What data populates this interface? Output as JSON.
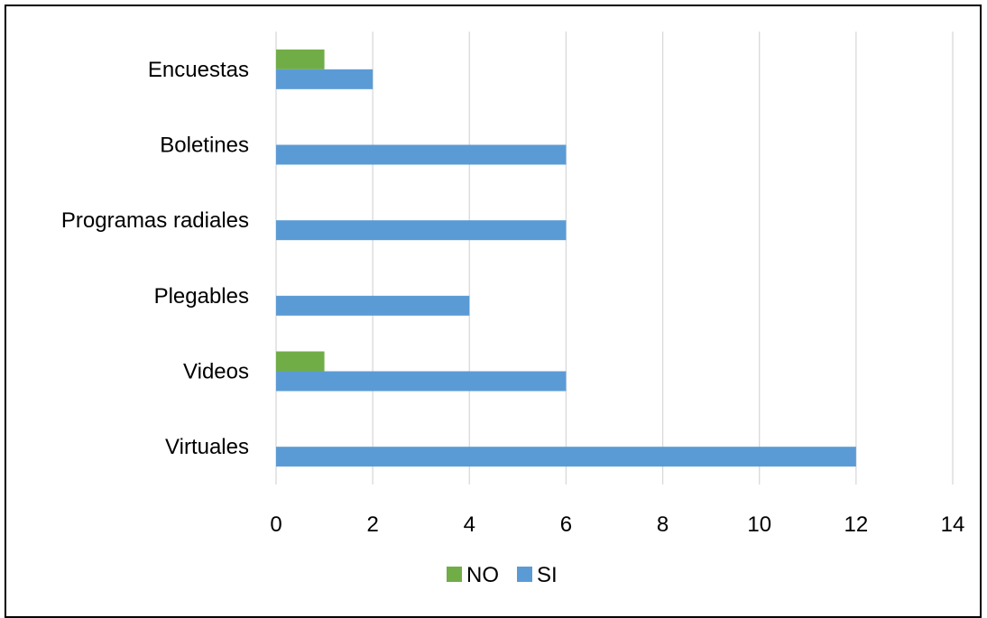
{
  "chart_data": {
    "type": "bar",
    "orientation": "horizontal",
    "categories": [
      "Encuestas",
      "Boletines",
      "Programas radiales",
      "Plegables",
      "Videos",
      "Virtuales"
    ],
    "series": [
      {
        "name": "NO",
        "color": "#70ad47",
        "values": [
          1,
          0,
          0,
          0,
          1,
          0
        ]
      },
      {
        "name": "SI",
        "color": "#5b9bd5",
        "values": [
          2,
          6,
          6,
          4,
          6,
          12
        ]
      }
    ],
    "xlim": [
      0,
      14
    ],
    "xticks": [
      "0",
      "2",
      "4",
      "6",
      "8",
      "10",
      "12",
      "14"
    ],
    "grid": true,
    "legend": "bottom"
  }
}
